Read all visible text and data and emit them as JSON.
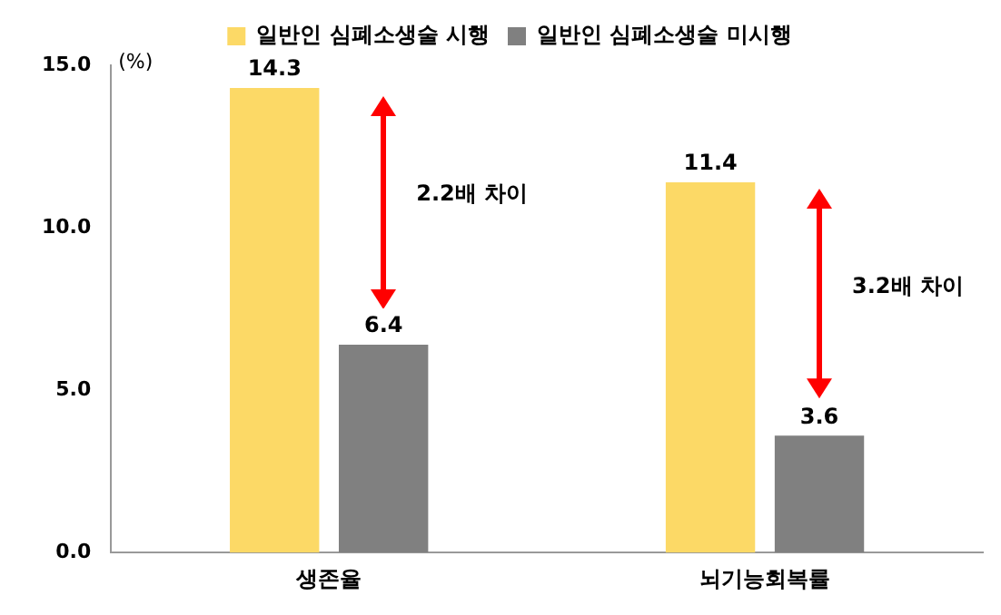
{
  "chart_data": {
    "type": "bar",
    "ylabel": "(%)",
    "categories": [
      "생존율",
      "뇌기능회복률"
    ],
    "series": [
      {
        "name": "일반인 심폐소생술 시행",
        "color": "#fcd966",
        "values": [
          14.3,
          11.4
        ]
      },
      {
        "name": "일반인 심폐소생술 미시행",
        "color": "#808080",
        "values": [
          6.4,
          3.6
        ]
      }
    ],
    "ylim": [
      0,
      15
    ],
    "yticks": [
      {
        "value": 0,
        "label": "0.0"
      },
      {
        "value": 5,
        "label": "5.0"
      },
      {
        "value": 10,
        "label": "10.0"
      },
      {
        "value": 15,
        "label": "15.0"
      }
    ],
    "grid": false,
    "legend": "top",
    "data_labels": true,
    "annotations": [
      "2.2배 차이",
      "3.2배 차이"
    ]
  }
}
